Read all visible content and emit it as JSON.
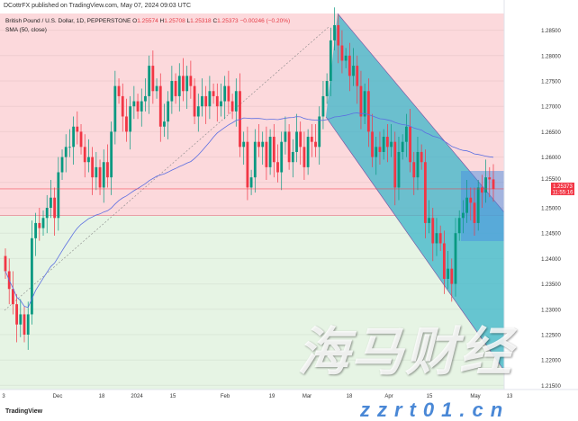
{
  "header": {
    "published": "DCottrFX published on TradingView.com, May 07, 2024 09:03 UTC"
  },
  "legend": {
    "symbol": "British Pound / U.S. Dollar, 1D, PEPPERSTONE",
    "o_label": "O",
    "o": "1.25574",
    "h_label": "H",
    "h": "1.25708",
    "l_label": "L",
    "l": "1.25318",
    "c_label": "C",
    "c": "1.25373",
    "change": "−0.00246 (−0.20%)",
    "indicator": "SMA (50, close)"
  },
  "footer": {
    "brand": "TradingView"
  },
  "watermark": {
    "cn": "海马财经",
    "url": "zzrt01.cn"
  },
  "colors": {
    "up": "#089981",
    "down": "#f23645",
    "sma": "#5b6ee1",
    "channel": "#3bb5c9",
    "zone_top": "#fcd9dc",
    "zone_bottom": "#e6f4e4"
  },
  "chart_data": {
    "type": "candlestick",
    "ylim": [
      1.2125,
      1.2885
    ],
    "y_ticks": [
      "1.28500",
      "1.28000",
      "1.27500",
      "1.27000",
      "1.26500",
      "1.26000",
      "1.25500",
      "1.25000",
      "1.24500",
      "1.24000",
      "1.23500",
      "1.23000",
      "1.22500",
      "1.22000",
      "1.21500"
    ],
    "x_ticks": [
      "3",
      "Dec",
      "18",
      "2024",
      "15",
      "Feb",
      "19",
      "Mar",
      "18",
      "Apr",
      "15",
      "May",
      "13"
    ],
    "last_price": "1.25373",
    "countdown": "11:55:16",
    "zone_boundary": 1.2485,
    "closes": [
      1.2375,
      1.234,
      1.231,
      1.227,
      1.229,
      1.225,
      1.229,
      1.244,
      1.247,
      1.246,
      1.248,
      1.25,
      1.252,
      1.248,
      1.257,
      1.26,
      1.262,
      1.262,
      1.266,
      1.265,
      1.262,
      1.259,
      1.26,
      1.256,
      1.258,
      1.254,
      1.259,
      1.256,
      1.265,
      1.274,
      1.272,
      1.268,
      1.265,
      1.27,
      1.271,
      1.269,
      1.271,
      1.272,
      1.278,
      1.273,
      1.274,
      1.266,
      1.267,
      1.271,
      1.275,
      1.272,
      1.276,
      1.273,
      1.276,
      1.274,
      1.268,
      1.27,
      1.272,
      1.27,
      1.273,
      1.272,
      1.27,
      1.271,
      1.274,
      1.271,
      1.269,
      1.273,
      1.262,
      1.263,
      1.254,
      1.256,
      1.263,
      1.262,
      1.263,
      1.258,
      1.264,
      1.259,
      1.257,
      1.263,
      1.265,
      1.259,
      1.261,
      1.265,
      1.262,
      1.258,
      1.264,
      1.263,
      1.262,
      1.268,
      1.272,
      1.275,
      1.283,
      1.286,
      1.282,
      1.279,
      1.28,
      1.276,
      1.278,
      1.274,
      1.268,
      1.273,
      1.265,
      1.26,
      1.262,
      1.261,
      1.264,
      1.262,
      1.263,
      1.254,
      1.261,
      1.263,
      1.266,
      1.259,
      1.256,
      1.261,
      1.259,
      1.247,
      1.248,
      1.243,
      1.245,
      1.243,
      1.236,
      1.238,
      1.235,
      1.245,
      1.248,
      1.249,
      1.252,
      1.251,
      1.247,
      1.254,
      1.253,
      1.256,
      1.2556,
      1.2537
    ]
  }
}
